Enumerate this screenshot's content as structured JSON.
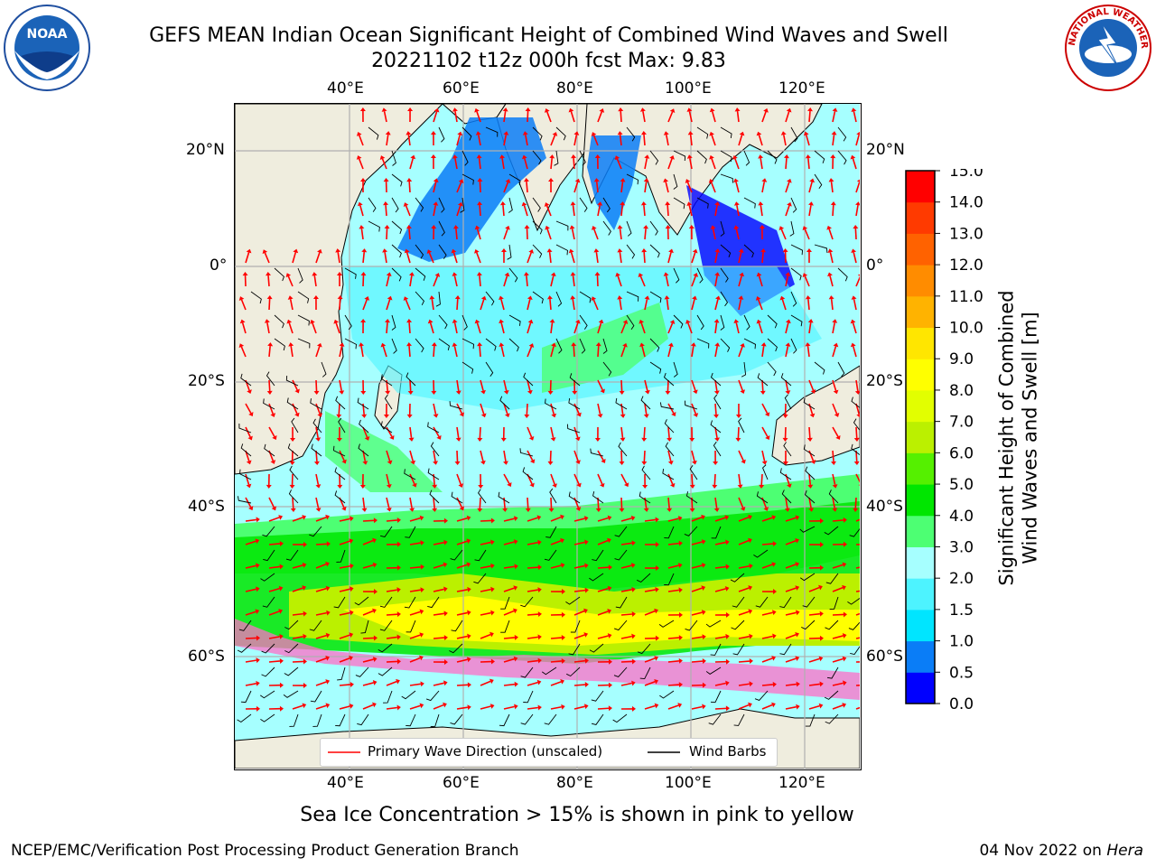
{
  "header": {
    "title_line1": "GEFS MEAN Indian Ocean Significant Height of Combined Wind Waves and Swell",
    "title_line2": "20221102 t12z 000h fcst   Max: 9.83"
  },
  "logos": {
    "left": "noaa-logo",
    "right": "national-weather-service-logo",
    "left_text": "NOAA",
    "right_text": "NATIONAL WEATHER SERVICE"
  },
  "map": {
    "lon_ticks": [
      "40°E",
      "60°E",
      "80°E",
      "100°E",
      "120°E"
    ],
    "lat_ticks": [
      "20°N",
      "0°",
      "20°S",
      "40°S",
      "60°S"
    ],
    "legend": {
      "wave_dir": "Primary Wave Direction (unscaled)",
      "wind_barbs": "Wind Barbs"
    },
    "colors": {
      "land": "#efedde",
      "ice_white": "#ffffff",
      "grid": "#b0b0b0"
    }
  },
  "colorbar": {
    "title_line1": "Significant Height of Combined",
    "title_line2": "Wind Waves and Swell [m]",
    "ticks": [
      "0.0",
      "0.5",
      "1.0",
      "1.5",
      "2.0",
      "3.0",
      "4.0",
      "5.0",
      "6.0",
      "7.0",
      "8.0",
      "9.0",
      "10.0",
      "11.0",
      "12.0",
      "13.0",
      "14.0",
      "15.0"
    ],
    "colors": [
      "#0000ff",
      "#0a7df7",
      "#00e5ff",
      "#4df3ff",
      "#a6ffff",
      "#4dff73",
      "#00e600",
      "#55f000",
      "#bbf000",
      "#e2ff00",
      "#ffff00",
      "#ffe600",
      "#ffb300",
      "#ff8c00",
      "#ff6200",
      "#ff3a00",
      "#ff0000"
    ]
  },
  "notes": {
    "sea_ice": "Sea Ice Concentration > 15% is shown in pink to yellow",
    "credit": "NCEP/EMC/Verification Post Processing Product Generation Branch",
    "date_prefix": "04 Nov 2022 on ",
    "date_host": "Hera"
  }
}
